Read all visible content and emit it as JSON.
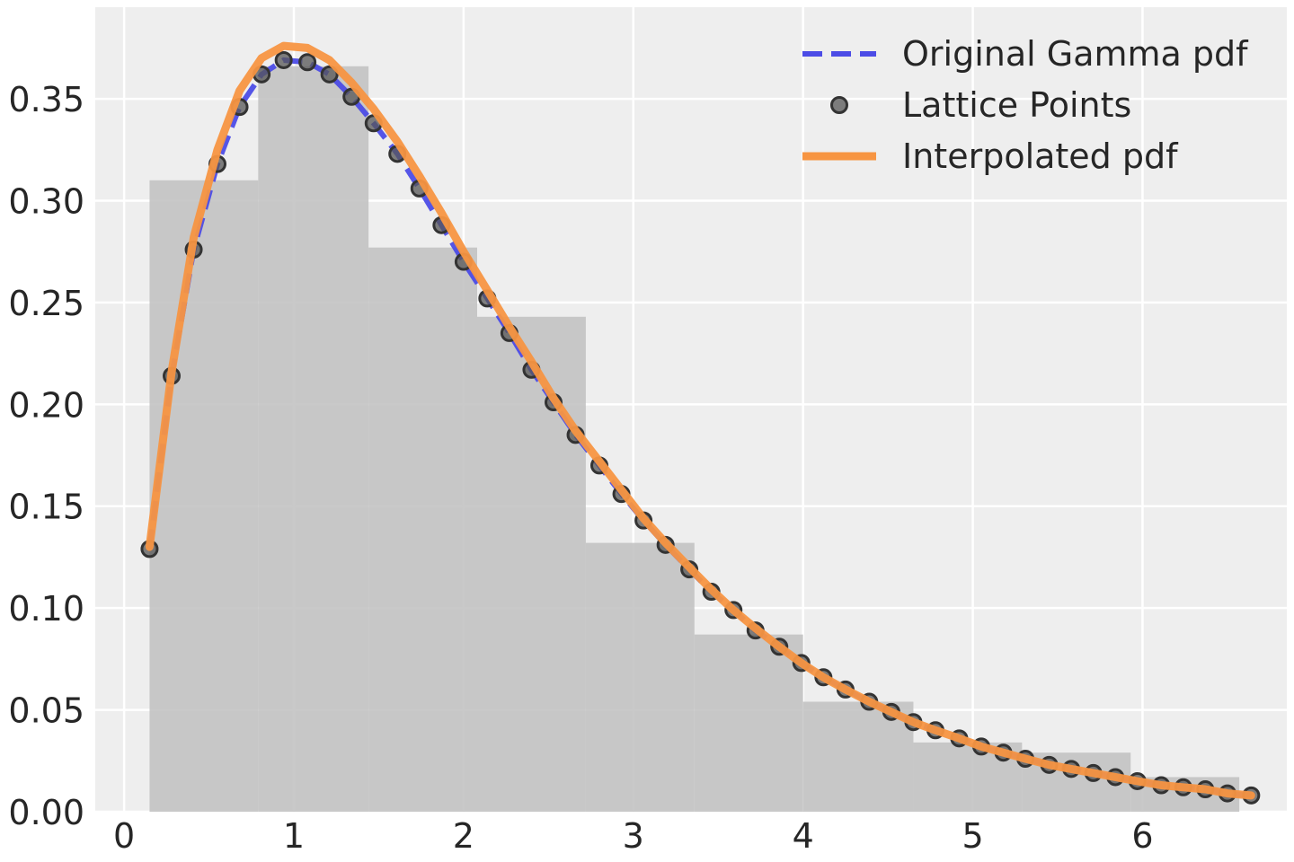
{
  "chart_data": {
    "type": "line",
    "title": "",
    "xlabel": "",
    "ylabel": "",
    "xlim": [
      -0.17,
      6.85
    ],
    "ylim": [
      0,
      0.395
    ],
    "grid": true,
    "legend_position": "top-right",
    "xticks": [
      0,
      1,
      2,
      3,
      4,
      5,
      6
    ],
    "xtick_labels": [
      "0",
      "1",
      "2",
      "3",
      "4",
      "5",
      "6"
    ],
    "yticks": [
      0,
      0.05,
      0.1,
      0.15,
      0.2,
      0.25,
      0.3,
      0.35
    ],
    "ytick_labels": [
      "0.00",
      "0.05",
      "0.10",
      "0.15",
      "0.20",
      "0.25",
      "0.30",
      "0.35"
    ],
    "histogram": {
      "name": "",
      "color": "#c0c0c0",
      "bins": [
        {
          "x0": 0.15,
          "x1": 0.79,
          "height": 0.31
        },
        {
          "x0": 0.79,
          "x1": 1.44,
          "height": 0.366
        },
        {
          "x0": 1.44,
          "x1": 2.08,
          "height": 0.277
        },
        {
          "x0": 2.08,
          "x1": 2.72,
          "height": 0.243
        },
        {
          "x0": 2.72,
          "x1": 3.36,
          "height": 0.132
        },
        {
          "x0": 3.36,
          "x1": 4.0,
          "height": 0.087
        },
        {
          "x0": 4.0,
          "x1": 4.65,
          "height": 0.054
        },
        {
          "x0": 4.65,
          "x1": 5.29,
          "height": 0.034
        },
        {
          "x0": 5.29,
          "x1": 5.93,
          "height": 0.029
        },
        {
          "x0": 5.93,
          "x1": 6.57,
          "height": 0.017
        }
      ]
    },
    "series": [
      {
        "name": "Original Gamma pdf",
        "style": "dashed-line",
        "color": "#4c4ce6",
        "x": [
          0.15,
          0.28,
          0.41,
          0.55,
          0.68,
          0.81,
          0.94,
          1.08,
          1.21,
          1.34,
          1.47,
          1.61,
          1.74,
          1.87,
          2.0,
          2.14,
          2.27,
          2.4,
          2.53,
          2.66,
          2.8,
          2.93,
          3.06,
          3.19,
          3.33,
          3.46,
          3.59,
          3.72,
          3.86,
          3.99,
          4.12,
          4.25,
          4.39,
          4.52,
          4.65,
          4.78,
          4.92,
          5.05,
          5.18,
          5.31,
          5.45,
          5.58,
          5.71,
          5.84,
          5.97,
          6.11,
          6.24,
          6.37,
          6.5,
          6.64
        ],
        "y": [
          0.129,
          0.214,
          0.276,
          0.318,
          0.346,
          0.362,
          0.369,
          0.368,
          0.362,
          0.351,
          0.338,
          0.323,
          0.306,
          0.288,
          0.27,
          0.252,
          0.235,
          0.217,
          0.201,
          0.185,
          0.17,
          0.156,
          0.143,
          0.131,
          0.119,
          0.108,
          0.099,
          0.089,
          0.081,
          0.073,
          0.066,
          0.06,
          0.054,
          0.049,
          0.044,
          0.04,
          0.036,
          0.032,
          0.029,
          0.026,
          0.023,
          0.021,
          0.019,
          0.017,
          0.015,
          0.013,
          0.012,
          0.011,
          0.009,
          0.008
        ]
      },
      {
        "name": "Lattice Points",
        "style": "markers",
        "color": "#555555",
        "x": [
          0.15,
          0.28,
          0.41,
          0.55,
          0.68,
          0.81,
          0.94,
          1.08,
          1.21,
          1.34,
          1.47,
          1.61,
          1.74,
          1.87,
          2.0,
          2.14,
          2.27,
          2.4,
          2.53,
          2.66,
          2.8,
          2.93,
          3.06,
          3.19,
          3.33,
          3.46,
          3.59,
          3.72,
          3.86,
          3.99,
          4.12,
          4.25,
          4.39,
          4.52,
          4.65,
          4.78,
          4.92,
          5.05,
          5.18,
          5.31,
          5.45,
          5.58,
          5.71,
          5.84,
          5.97,
          6.11,
          6.24,
          6.37,
          6.5,
          6.64
        ],
        "y": [
          0.129,
          0.214,
          0.276,
          0.318,
          0.346,
          0.362,
          0.369,
          0.368,
          0.362,
          0.351,
          0.338,
          0.323,
          0.306,
          0.288,
          0.27,
          0.252,
          0.235,
          0.217,
          0.201,
          0.185,
          0.17,
          0.156,
          0.143,
          0.131,
          0.119,
          0.108,
          0.099,
          0.089,
          0.081,
          0.073,
          0.066,
          0.06,
          0.054,
          0.049,
          0.044,
          0.04,
          0.036,
          0.032,
          0.029,
          0.026,
          0.023,
          0.021,
          0.019,
          0.017,
          0.015,
          0.013,
          0.012,
          0.011,
          0.009,
          0.008
        ]
      },
      {
        "name": "Interpolated pdf",
        "style": "solid-line",
        "color": "#f79542",
        "x": [
          0.15,
          0.28,
          0.41,
          0.55,
          0.68,
          0.81,
          0.94,
          1.08,
          1.21,
          1.34,
          1.47,
          1.61,
          1.74,
          1.87,
          2.0,
          2.14,
          2.27,
          2.4,
          2.53,
          2.66,
          2.8,
          2.93,
          3.06,
          3.19,
          3.33,
          3.46,
          3.59,
          3.72,
          3.86,
          3.99,
          4.12,
          4.25,
          4.39,
          4.52,
          4.65,
          4.78,
          4.92,
          5.05,
          5.18,
          5.31,
          5.45,
          5.58,
          5.71,
          5.84,
          5.97,
          6.11,
          6.24,
          6.37,
          6.5,
          6.64
        ],
        "y": [
          0.13,
          0.216,
          0.282,
          0.325,
          0.354,
          0.37,
          0.376,
          0.375,
          0.369,
          0.358,
          0.345,
          0.329,
          0.312,
          0.294,
          0.275,
          0.256,
          0.238,
          0.221,
          0.203,
          0.187,
          0.172,
          0.158,
          0.144,
          0.132,
          0.12,
          0.109,
          0.099,
          0.09,
          0.081,
          0.073,
          0.066,
          0.06,
          0.054,
          0.049,
          0.044,
          0.04,
          0.036,
          0.032,
          0.029,
          0.026,
          0.023,
          0.021,
          0.019,
          0.017,
          0.015,
          0.013,
          0.012,
          0.011,
          0.009,
          0.008
        ]
      }
    ]
  }
}
